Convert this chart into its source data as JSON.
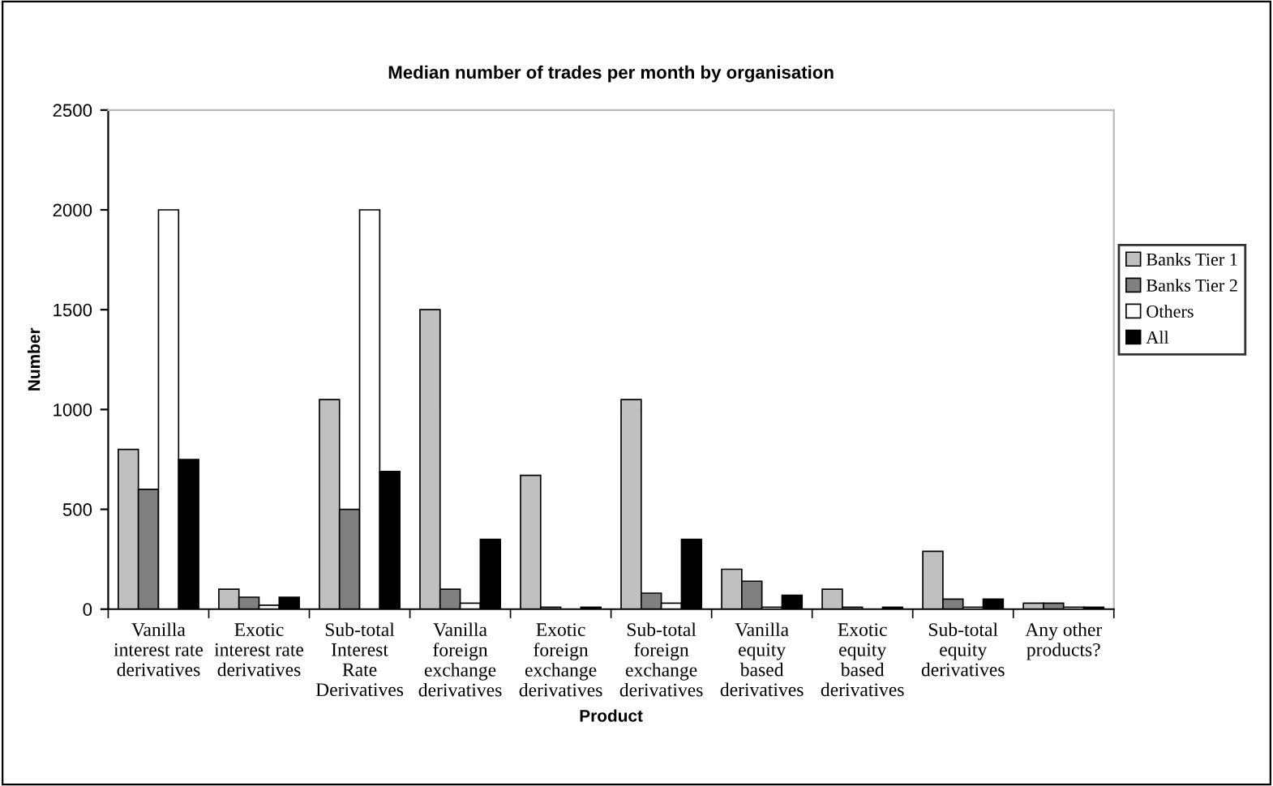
{
  "chart_data": {
    "type": "bar",
    "title": "Median number of trades per month by organisation",
    "xlabel": "Product",
    "ylabel": "Number",
    "categories": [
      "Vanilla\ninterest rate\nderivatives",
      "Exotic\ninterest rate\nderivatives",
      "Sub-total\nInterest\nRate\nDerivatives",
      "Vanilla\nforeign\nexchange\nderivatives",
      "Exotic\nforeign\nexchange\nderivatives",
      "Sub-total\nforeign\nexchange\nderivatives",
      "Vanilla\nequity\nbased\nderivatives",
      "Exotic\nequity\nbased\nderivatives",
      "Sub-total\nequity\nderivatives",
      "Any other\nproducts?"
    ],
    "series": [
      {
        "name": "Banks Tier 1",
        "color": "#c0c0c0",
        "values": [
          800,
          100,
          1050,
          1500,
          670,
          1050,
          200,
          100,
          290,
          30
        ]
      },
      {
        "name": "Banks Tier 2",
        "color": "#808080",
        "values": [
          600,
          60,
          500,
          100,
          10,
          80,
          140,
          10,
          50,
          30
        ]
      },
      {
        "name": "Others",
        "color": "#ffffff",
        "values": [
          2000,
          20,
          2000,
          30,
          null,
          30,
          10,
          null,
          10,
          10
        ]
      },
      {
        "name": "All",
        "color": "#000000",
        "values": [
          750,
          60,
          690,
          350,
          10,
          350,
          70,
          10,
          50,
          10
        ]
      }
    ],
    "ylim": [
      0,
      2500
    ],
    "yticks": [
      0,
      500,
      1000,
      1500,
      2000,
      2500
    ],
    "grid": false,
    "legend": "right"
  }
}
